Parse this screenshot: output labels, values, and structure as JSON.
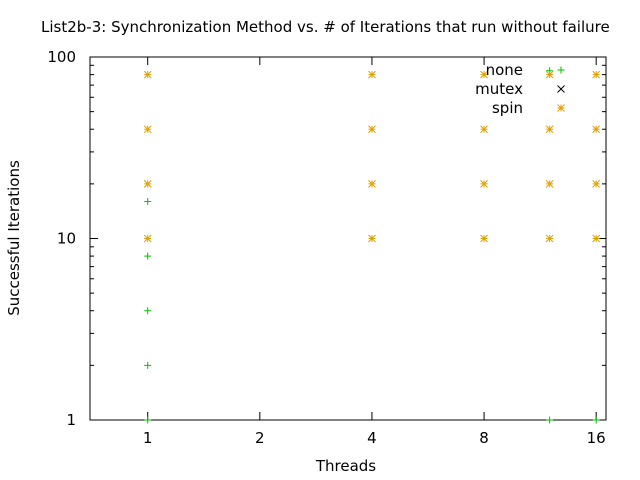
{
  "chart_data": {
    "type": "scatter",
    "title": "List2b-3: Synchronization Method vs. # of Iterations that run without failure",
    "xlabel": "Threads",
    "ylabel": "Successful Iterations",
    "x_scale": "log2",
    "y_scale": "log10",
    "xlim": [
      0.7,
      17
    ],
    "ylim": [
      1,
      100
    ],
    "x_ticks": [
      {
        "value": 1,
        "label": "1"
      },
      {
        "value": 2,
        "label": "2"
      },
      {
        "value": 4,
        "label": "4"
      },
      {
        "value": 8,
        "label": "8"
      },
      {
        "value": 16,
        "label": "16"
      }
    ],
    "y_ticks": [
      {
        "value": 1,
        "label": "1"
      },
      {
        "value": 10,
        "label": "10"
      },
      {
        "value": 100,
        "label": "100"
      }
    ],
    "grid": false,
    "legend_position": "top-right",
    "series": [
      {
        "name": "none",
        "marker": "+",
        "color": "#00c000",
        "points": [
          [
            1,
            1
          ],
          [
            1,
            2
          ],
          [
            1,
            4
          ],
          [
            1,
            8
          ],
          [
            1,
            16
          ],
          [
            12,
            1
          ],
          [
            12,
            84
          ],
          [
            16,
            1
          ]
        ]
      },
      {
        "name": "mutex",
        "marker": "x",
        "color": "#000000",
        "points": []
      },
      {
        "name": "spin",
        "marker": "*",
        "color": "#e0a000",
        "points": [
          [
            1,
            10
          ],
          [
            1,
            20
          ],
          [
            1,
            40
          ],
          [
            1,
            80
          ],
          [
            4,
            10
          ],
          [
            4,
            20
          ],
          [
            4,
            40
          ],
          [
            4,
            80
          ],
          [
            8,
            10
          ],
          [
            8,
            20
          ],
          [
            8,
            40
          ],
          [
            8,
            80
          ],
          [
            12,
            10
          ],
          [
            12,
            20
          ],
          [
            12,
            40
          ],
          [
            12,
            80
          ],
          [
            16,
            10
          ],
          [
            16,
            20
          ],
          [
            16,
            40
          ],
          [
            16,
            80
          ]
        ]
      }
    ]
  }
}
